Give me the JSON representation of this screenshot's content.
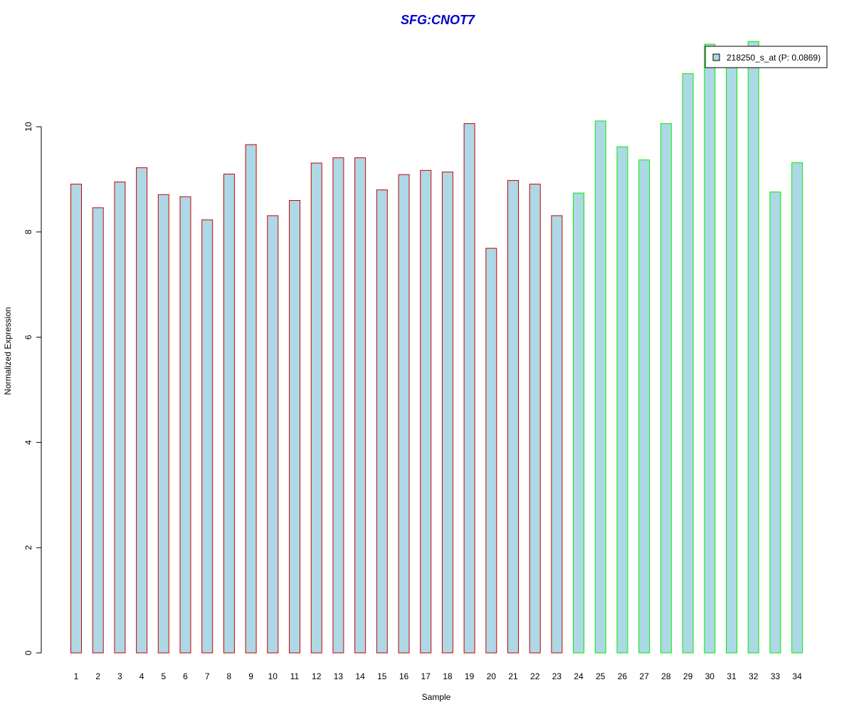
{
  "chart_data": {
    "type": "bar",
    "title": "SFG:CNOT7",
    "xlabel": "Sample",
    "ylabel": "Normalized Expression",
    "ylim": [
      0,
      11.7
    ],
    "yticks": [
      0,
      2,
      4,
      6,
      8,
      10
    ],
    "categories": [
      "1",
      "2",
      "3",
      "4",
      "5",
      "6",
      "7",
      "8",
      "9",
      "10",
      "11",
      "12",
      "13",
      "14",
      "15",
      "16",
      "17",
      "18",
      "19",
      "20",
      "21",
      "22",
      "23",
      "24",
      "25",
      "26",
      "27",
      "28",
      "29",
      "30",
      "31",
      "32",
      "33",
      "34"
    ],
    "series": [
      {
        "name": "218250_s_at (P: 0.0869)",
        "values": [
          8.91,
          8.46,
          8.95,
          9.22,
          8.71,
          8.67,
          8.23,
          9.1,
          9.66,
          8.31,
          8.6,
          9.31,
          9.41,
          9.41,
          8.8,
          9.09,
          9.17,
          9.14,
          10.06,
          7.69,
          8.98,
          8.91,
          8.31,
          8.74,
          10.11,
          9.62,
          9.37,
          10.06,
          11.01,
          11.57,
          11.25,
          11.62,
          8.76,
          9.32
        ]
      }
    ],
    "group_colors": [
      "#cc0000",
      "#cc0000",
      "#cc0000",
      "#cc0000",
      "#cc0000",
      "#cc0000",
      "#cc0000",
      "#cc0000",
      "#cc0000",
      "#cc0000",
      "#cc0000",
      "#cc0000",
      "#cc0000",
      "#cc0000",
      "#cc0000",
      "#cc0000",
      "#cc0000",
      "#cc0000",
      "#cc0000",
      "#cc0000",
      "#cc0000",
      "#cc0000",
      "#cc0000",
      "#00ee00",
      "#00ee00",
      "#00ee00",
      "#00ee00",
      "#00ee00",
      "#00ee00",
      "#00ee00",
      "#00ee00",
      "#00ee00",
      "#00ee00",
      "#00ee00"
    ],
    "bar_fill": "#add8e6",
    "title_color": "#0000cc",
    "legend": {
      "position": "top-right",
      "label": "218250_s_at (P: 0.0869)"
    },
    "grid": false
  }
}
